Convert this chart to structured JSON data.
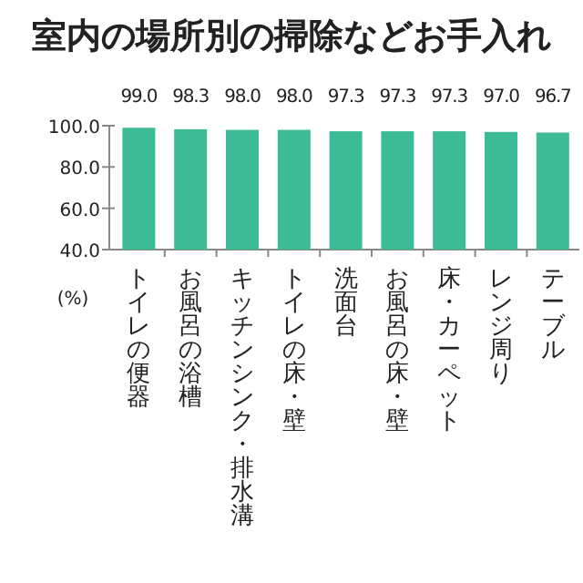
{
  "chart_data": {
    "type": "bar",
    "title": "室内の場所別の掃除などお手入れ",
    "ylabel": "(%)",
    "categories": [
      "トイレの便器",
      "お風呂の浴槽",
      "キッチンシンク・排水溝",
      "トイレの床・壁",
      "洗面台",
      "お風呂の床・壁",
      "床・カーペット",
      "レンジ周り",
      "テーブル"
    ],
    "values": [
      99.0,
      98.3,
      98.0,
      98.0,
      97.3,
      97.3,
      97.3,
      97.0,
      96.7
    ],
    "color": "#3dbb96",
    "ylim": [
      40,
      100
    ],
    "yticks": [
      {
        "value": 40,
        "label": "40.0"
      },
      {
        "value": 60,
        "label": "60.0"
      },
      {
        "value": 80,
        "label": "80.0"
      },
      {
        "value": 100,
        "label": "100.0"
      }
    ],
    "value_labels": [
      "99.0",
      "98.3",
      "98.0",
      "98.0",
      "97.3",
      "97.3",
      "97.3",
      "97.0",
      "96.7"
    ],
    "grid": false
  }
}
